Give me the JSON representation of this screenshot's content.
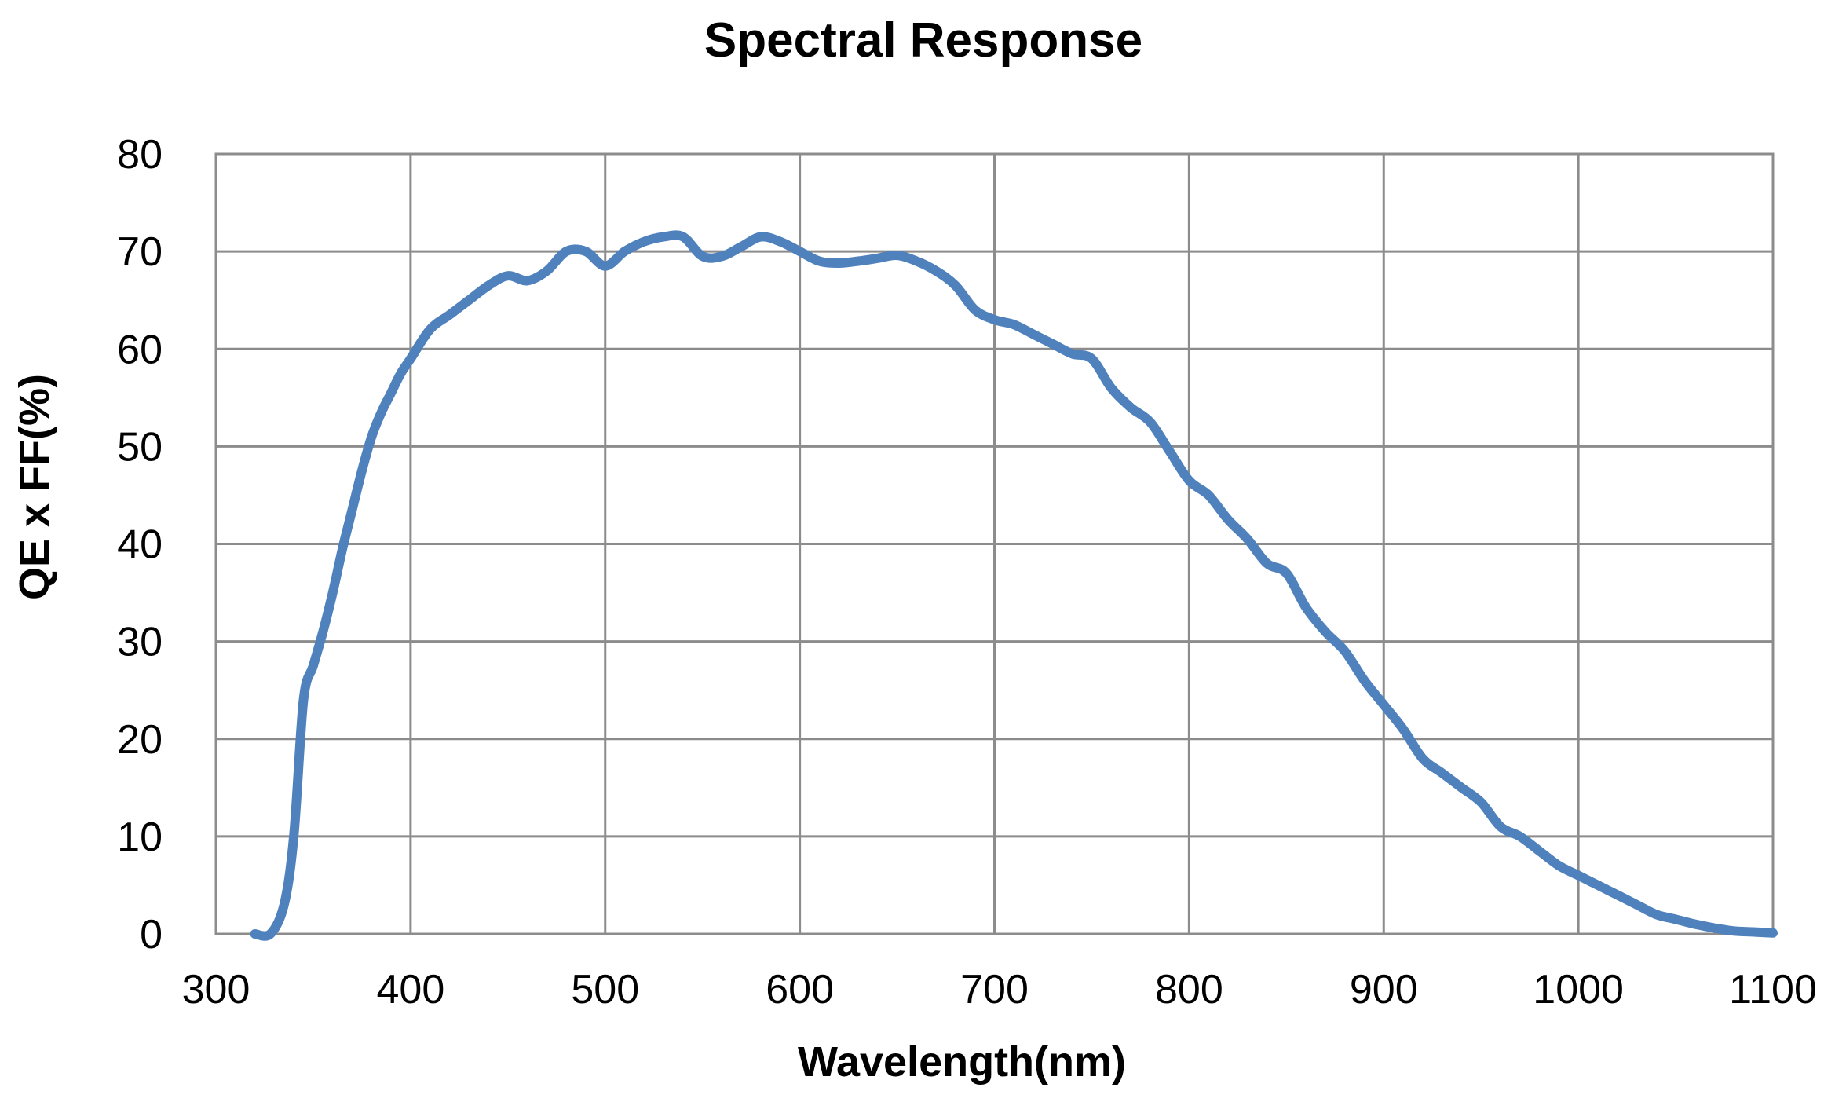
{
  "chart_data": {
    "type": "line",
    "title": "Spectral Response",
    "xlabel": "Wavelength(nm)",
    "ylabel": "QE x FF(%)",
    "xlim": [
      300,
      1100
    ],
    "ylim": [
      0,
      80
    ],
    "xticks": [
      "300",
      "400",
      "500",
      "600",
      "700",
      "800",
      "900",
      "1000",
      "1100"
    ],
    "yticks": [
      "0",
      "10",
      "20",
      "30",
      "40",
      "50",
      "60",
      "70",
      "80"
    ],
    "grid": true,
    "legend": "none",
    "series": [
      {
        "color": "#4f81bd",
        "x": [
          320,
          328,
          335,
          340,
          345,
          350,
          355,
          360,
          365,
          370,
          375,
          380,
          385,
          390,
          395,
          400,
          410,
          420,
          430,
          440,
          450,
          460,
          470,
          480,
          490,
          500,
          510,
          520,
          530,
          540,
          550,
          560,
          570,
          580,
          590,
          600,
          610,
          620,
          630,
          640,
          650,
          660,
          670,
          680,
          690,
          700,
          710,
          720,
          730,
          740,
          750,
          760,
          770,
          780,
          790,
          800,
          810,
          820,
          830,
          840,
          850,
          860,
          870,
          880,
          890,
          900,
          910,
          920,
          930,
          940,
          950,
          960,
          970,
          980,
          990,
          1000,
          1010,
          1020,
          1030,
          1040,
          1050,
          1060,
          1070,
          1080,
          1090,
          1100
        ],
        "y": [
          0,
          0,
          3,
          10,
          24,
          27.5,
          31,
          35,
          39.5,
          43.5,
          47.5,
          51,
          53.5,
          55.5,
          57.5,
          59,
          62,
          63.5,
          65,
          66.5,
          67.5,
          67,
          68,
          70,
          70,
          68.5,
          70,
          71,
          71.5,
          71.5,
          69.5,
          69.5,
          70.5,
          71.5,
          71,
          70,
          69,
          68.8,
          69,
          69.3,
          69.6,
          69,
          68,
          66.5,
          64,
          63,
          62.5,
          61.5,
          60.5,
          59.5,
          59,
          56,
          54,
          52.5,
          49.5,
          46.5,
          45,
          42.5,
          40.5,
          38,
          37,
          33.5,
          31,
          29,
          26,
          23.5,
          21,
          18,
          16.5,
          15,
          13.5,
          11,
          10,
          8.5,
          7,
          6,
          5,
          4,
          3,
          2,
          1.5,
          1,
          0.6,
          0.3,
          0.2,
          0.1
        ]
      }
    ]
  }
}
